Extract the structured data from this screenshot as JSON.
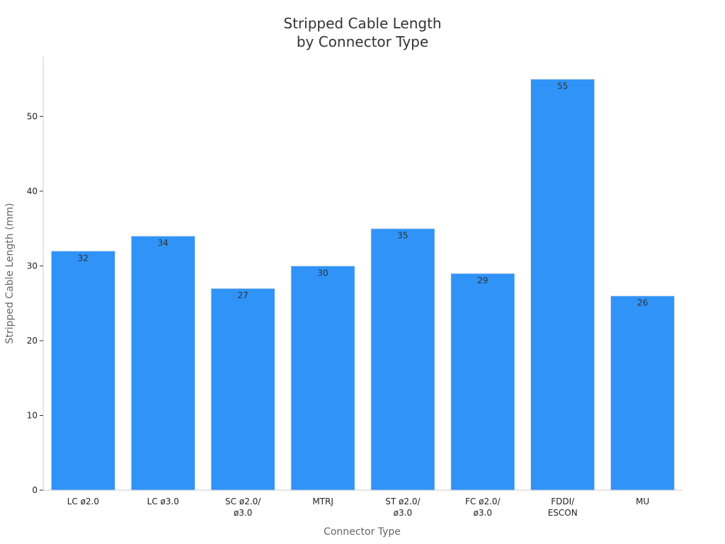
{
  "chart_data": {
    "type": "bar",
    "title": [
      "Stripped Cable Length",
      "by Connector Type"
    ],
    "xlabel": "Connector Type",
    "ylabel": "Stripped Cable Length (mm)",
    "categories": [
      [
        "LC ø2.0"
      ],
      [
        "LC ø3.0"
      ],
      [
        "SC ø2.0/",
        "ø3.0"
      ],
      [
        "MTRJ"
      ],
      [
        "ST ø2.0/",
        "ø3.0"
      ],
      [
        "FC ø2.0/",
        "ø3.0"
      ],
      [
        "FDDI/",
        "ESCON"
      ],
      [
        "MU"
      ]
    ],
    "values": [
      32,
      34,
      27,
      30,
      35,
      29,
      55,
      26
    ],
    "ylim": [
      0,
      58
    ],
    "yticks": [
      0,
      10,
      20,
      30,
      40,
      50
    ],
    "grid": false,
    "bar_color": "#2f93f8"
  }
}
